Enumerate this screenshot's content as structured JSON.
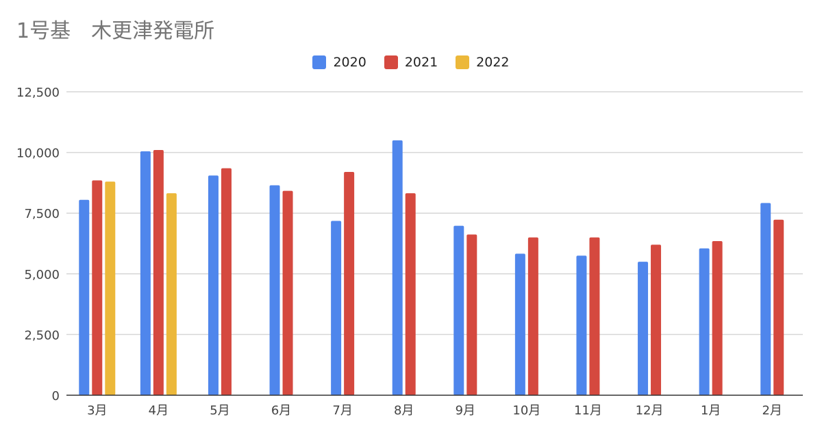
{
  "chart_data": {
    "type": "bar",
    "title": "1号基　木更津発電所",
    "categories": [
      "3月",
      "4月",
      "5月",
      "6月",
      "7月",
      "8月",
      "9月",
      "10月",
      "11月",
      "12月",
      "1月",
      "2月"
    ],
    "series": [
      {
        "name": "2020",
        "color": "#4f86ec",
        "values": [
          8050,
          10050,
          9050,
          8650,
          7180,
          10500,
          6980,
          5830,
          5750,
          5500,
          6050,
          7920
        ]
      },
      {
        "name": "2021",
        "color": "#d5493f",
        "values": [
          8850,
          10100,
          9350,
          8420,
          9200,
          8320,
          6620,
          6500,
          6500,
          6200,
          6350,
          7230
        ]
      },
      {
        "name": "2022",
        "color": "#ecb83a",
        "values": [
          8800,
          8320,
          null,
          null,
          null,
          null,
          null,
          null,
          null,
          null,
          null,
          null
        ]
      }
    ],
    "ylim": [
      0,
      12500
    ],
    "yticks": [
      0,
      2500,
      5000,
      7500,
      10000,
      12500
    ],
    "ytick_labels": [
      "0",
      "2,500",
      "5,000",
      "7,500",
      "10,000",
      "12,500"
    ],
    "grid": true,
    "legend_position": "top"
  }
}
